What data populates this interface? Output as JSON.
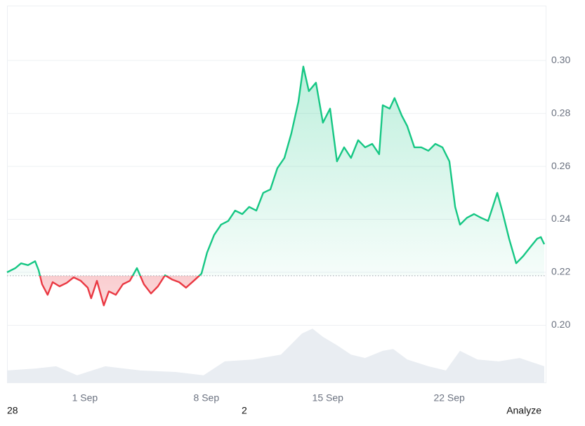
{
  "chart_data": {
    "type": "price-line",
    "baseline": 0.2187,
    "xlim": [
      -3.49,
      27.56
    ],
    "xticks": [
      {
        "value": 1,
        "label": "1 Sep"
      },
      {
        "value": 8,
        "label": "8 Sep"
      },
      {
        "value": 15,
        "label": "15 Sep"
      },
      {
        "value": 22,
        "label": "22 Sep"
      }
    ],
    "ylim": [
      0.1784,
      0.3207
    ],
    "yticks": [
      {
        "value": 0.2,
        "label": "0.20"
      },
      {
        "value": 0.22,
        "label": "0.22"
      },
      {
        "value": 0.24,
        "label": "0.24"
      },
      {
        "value": 0.26,
        "label": "0.26"
      },
      {
        "value": 0.28,
        "label": "0.28"
      },
      {
        "value": 0.3,
        "label": "0.30"
      }
    ],
    "y2lim": [
      0,
      100
    ],
    "grid": true,
    "series": [
      {
        "color": "#16c784",
        "down_color": "#ea3943",
        "x": [
          -3.49,
          -3.01,
          -2.68,
          -2.28,
          -1.87,
          -1.67,
          -1.47,
          -1.15,
          -0.86,
          -0.46,
          -0.05,
          0.35,
          0.76,
          1.16,
          1.36,
          1.69,
          2.09,
          2.38,
          2.78,
          3.19,
          3.59,
          4.0,
          4.4,
          4.81,
          5.21,
          5.62,
          6.02,
          6.43,
          6.83,
          7.36,
          7.72,
          8.04,
          8.45,
          8.85,
          9.26,
          9.66,
          10.07,
          10.47,
          10.88,
          11.28,
          11.69,
          12.09,
          12.5,
          12.9,
          13.31,
          13.59,
          13.91,
          14.32,
          14.72,
          15.13,
          15.53,
          15.94,
          16.34,
          16.75,
          17.15,
          17.56,
          17.96,
          18.17,
          18.57,
          18.85,
          19.26,
          19.58,
          19.99,
          20.39,
          20.8,
          21.2,
          21.61,
          22.01,
          22.34,
          22.62,
          23.02,
          23.43,
          23.83,
          24.24,
          24.44,
          24.77,
          25.05,
          25.45,
          25.86,
          26.26,
          26.67,
          27.07,
          27.28,
          27.48
        ],
        "values": [
          0.22,
          0.2216,
          0.2234,
          0.2227,
          0.2242,
          0.2208,
          0.2155,
          0.2115,
          0.2163,
          0.2147,
          0.216,
          0.2181,
          0.2168,
          0.2142,
          0.2102,
          0.2168,
          0.2075,
          0.2128,
          0.2115,
          0.2155,
          0.2168,
          0.2216,
          0.2155,
          0.212,
          0.2147,
          0.2189,
          0.2173,
          0.2163,
          0.2142,
          0.2173,
          0.2195,
          0.2274,
          0.2341,
          0.238,
          0.2394,
          0.2433,
          0.242,
          0.2447,
          0.2433,
          0.25,
          0.2513,
          0.2593,
          0.2632,
          0.2725,
          0.2845,
          0.2977,
          0.2884,
          0.2916,
          0.2765,
          0.2818,
          0.2619,
          0.2672,
          0.2632,
          0.2699,
          0.2672,
          0.2685,
          0.2646,
          0.2831,
          0.2818,
          0.2858,
          0.2792,
          0.2752,
          0.2672,
          0.2672,
          0.2659,
          0.2685,
          0.2672,
          0.2619,
          0.2447,
          0.238,
          0.2406,
          0.242,
          0.2406,
          0.2394,
          0.2433,
          0.25,
          0.2433,
          0.2327,
          0.2234,
          0.2261,
          0.2295,
          0.2327,
          0.2333,
          0.2306
        ]
      },
      {
        "color": "#e9edf2",
        "axis": "y2",
        "x": [
          -3.49,
          -1.87,
          -0.66,
          0.55,
          2.17,
          4.2,
          6.22,
          7.84,
          9.06,
          10.68,
          12.3,
          13.51,
          14.12,
          14.72,
          15.53,
          16.34,
          17.15,
          18.17,
          18.77,
          19.58,
          20.8,
          21.81,
          22.62,
          23.63,
          24.85,
          26.06,
          27.48
        ],
        "values": [
          3.2,
          3.7,
          4.3,
          1.9,
          4.3,
          3.2,
          2.8,
          1.9,
          5.6,
          6.1,
          7.4,
          13,
          14.3,
          12.1,
          9.9,
          7.4,
          6.5,
          8.4,
          8.9,
          6.1,
          4.3,
          3.2,
          8.4,
          6.1,
          5.6,
          6.5,
          4.3
        ]
      }
    ]
  },
  "footer": [
    "28",
    "2",
    "Analyze"
  ]
}
